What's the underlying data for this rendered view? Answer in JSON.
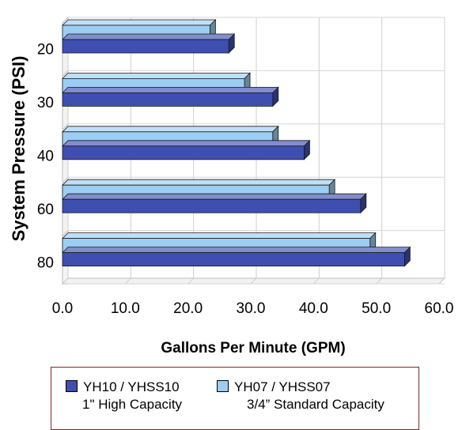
{
  "chart_data": {
    "type": "bar",
    "orientation": "horizontal",
    "style": "3d",
    "categories": [
      "20",
      "30",
      "40",
      "60",
      "80"
    ],
    "series": [
      {
        "name": "YH10 / YHSS10",
        "subtitle": "1\" High Capacity",
        "color": "#3f4fb0",
        "values": [
          26.5,
          33.5,
          38.5,
          47.5,
          54.5
        ]
      },
      {
        "name": "YH07 / YHSS07",
        "subtitle": "3/4” Standard Capacity",
        "color": "#9ccdf2",
        "values": [
          23.5,
          29.0,
          33.5,
          42.5,
          49.0
        ]
      }
    ],
    "xlabel": "Gallons Per Minute (GPM)",
    "ylabel": "System Pressure (PSI)",
    "xlim": [
      0,
      60
    ],
    "xticks": [
      "0.0",
      "10.0",
      "20.0",
      "30.0",
      "40.0",
      "50.0",
      "60.0"
    ],
    "grid": true,
    "legend_position": "bottom"
  }
}
